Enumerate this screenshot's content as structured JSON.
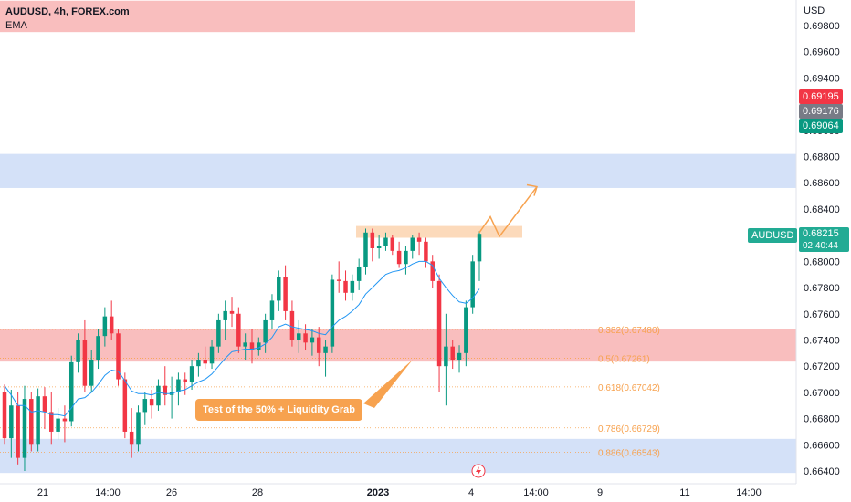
{
  "legend": {
    "symbol": "AUDUSD, 4h, FOREX.com",
    "indicator": "EMA"
  },
  "currency": "USD",
  "price_tags": [
    {
      "value": "0.69195",
      "color": "#f23645"
    },
    {
      "value": "0.69176",
      "color": "#787b86"
    },
    {
      "value": "0.69064",
      "color": "#089981"
    }
  ],
  "current": {
    "symbol": "AUDUSD",
    "price": "0.68215",
    "countdown": "02:40:44",
    "color": "#22ab94"
  },
  "annotation": "Test of the 50% + Liquidity Grab",
  "chart_data": {
    "type": "candlestick",
    "symbol": "AUDUSD",
    "timeframe": "4h",
    "ylim": [
      0.6637,
      0.7
    ],
    "y_ticks": [
      "0.69800",
      "0.69600",
      "0.69400",
      "0.69200",
      "0.69000",
      "0.68800",
      "0.68600",
      "0.68400",
      "0.68200",
      "0.68000",
      "0.67800",
      "0.67600",
      "0.67400",
      "0.67200",
      "0.67000",
      "0.66800",
      "0.66600",
      "0.66400"
    ],
    "x_ticks": [
      "21",
      "14:00",
      "26",
      "28",
      "2023",
      "4",
      "14:00",
      "9",
      "11",
      "14:00"
    ],
    "fib_levels": [
      {
        "label": "0.382(0.67480)",
        "price": 0.6748
      },
      {
        "label": "0.5(0.67261)",
        "price": 0.67261
      },
      {
        "label": "0.618(0.67042)",
        "price": 0.67042
      },
      {
        "label": "0.786(0.66729)",
        "price": 0.66729
      },
      {
        "label": "0.886(0.66543)",
        "price": 0.66543
      }
    ],
    "zones": [
      {
        "type": "supply",
        "top": 0.6999,
        "bottom": 0.6975,
        "color": "#f7a8a8",
        "extent": "partial"
      },
      {
        "type": "demand",
        "top": 0.6882,
        "bottom": 0.6856,
        "color": "#c5d7f5",
        "extent": "full"
      },
      {
        "type": "supply",
        "top": 0.6748,
        "bottom": 0.67235,
        "color": "#f7a8a8",
        "extent": "full"
      },
      {
        "type": "demand",
        "top": 0.66645,
        "bottom": 0.66385,
        "color": "#c5d7f5",
        "extent": "full"
      },
      {
        "type": "resistance",
        "top": 0.6827,
        "bottom": 0.6818,
        "color": "#fcd6b4",
        "extent": "segment"
      }
    ],
    "candles": [
      [
        0.67,
        0.6706,
        0.666,
        0.6665
      ],
      [
        0.6665,
        0.6702,
        0.665,
        0.669
      ],
      [
        0.669,
        0.67,
        0.6645,
        0.665
      ],
      [
        0.665,
        0.6705,
        0.664,
        0.6695
      ],
      [
        0.6695,
        0.67,
        0.6655,
        0.666
      ],
      [
        0.666,
        0.6703,
        0.6655,
        0.6697
      ],
      [
        0.6697,
        0.6704,
        0.6672,
        0.6685
      ],
      [
        0.6685,
        0.67,
        0.666,
        0.667
      ],
      [
        0.667,
        0.6688,
        0.6664,
        0.668
      ],
      [
        0.668,
        0.669,
        0.6662,
        0.6678
      ],
      [
        0.6678,
        0.6728,
        0.6674,
        0.6723
      ],
      [
        0.6723,
        0.6745,
        0.6715,
        0.674
      ],
      [
        0.674,
        0.6755,
        0.67,
        0.6705
      ],
      [
        0.6705,
        0.6732,
        0.67,
        0.6725
      ],
      [
        0.6725,
        0.6748,
        0.6718,
        0.6743
      ],
      [
        0.6743,
        0.6765,
        0.6735,
        0.6758
      ],
      [
        0.6758,
        0.677,
        0.674,
        0.6745
      ],
      [
        0.6745,
        0.6748,
        0.6705,
        0.671
      ],
      [
        0.671,
        0.6715,
        0.6665,
        0.667
      ],
      [
        0.667,
        0.6688,
        0.665,
        0.666
      ],
      [
        0.666,
        0.669,
        0.6655,
        0.6685
      ],
      [
        0.6685,
        0.67,
        0.6675,
        0.6695
      ],
      [
        0.6695,
        0.6702,
        0.668,
        0.669
      ],
      [
        0.669,
        0.671,
        0.6686,
        0.6705
      ],
      [
        0.6705,
        0.672,
        0.669,
        0.6698
      ],
      [
        0.6698,
        0.6712,
        0.668,
        0.67
      ],
      [
        0.67,
        0.6715,
        0.669,
        0.671
      ],
      [
        0.671,
        0.6715,
        0.6698,
        0.6708
      ],
      [
        0.6708,
        0.6725,
        0.6702,
        0.672
      ],
      [
        0.672,
        0.673,
        0.6712,
        0.6725
      ],
      [
        0.6725,
        0.6735,
        0.6718,
        0.6722
      ],
      [
        0.6722,
        0.674,
        0.6718,
        0.6735
      ],
      [
        0.6735,
        0.676,
        0.673,
        0.6755
      ],
      [
        0.6755,
        0.677,
        0.674,
        0.6762
      ],
      [
        0.6762,
        0.6773,
        0.675,
        0.676
      ],
      [
        0.676,
        0.6765,
        0.673,
        0.6735
      ],
      [
        0.6735,
        0.6745,
        0.6725,
        0.6738
      ],
      [
        0.6738,
        0.6748,
        0.6722,
        0.6732
      ],
      [
        0.6732,
        0.6742,
        0.6728,
        0.6738
      ],
      [
        0.6738,
        0.676,
        0.673,
        0.6755
      ],
      [
        0.6755,
        0.6775,
        0.6748,
        0.677
      ],
      [
        0.677,
        0.6793,
        0.6762,
        0.6788
      ],
      [
        0.6788,
        0.6797,
        0.6755,
        0.6762
      ],
      [
        0.6762,
        0.677,
        0.6735,
        0.674
      ],
      [
        0.674,
        0.6755,
        0.673,
        0.6745
      ],
      [
        0.6745,
        0.6752,
        0.6732,
        0.6738
      ],
      [
        0.6738,
        0.6748,
        0.6728,
        0.6742
      ],
      [
        0.6742,
        0.675,
        0.672,
        0.673
      ],
      [
        0.673,
        0.674,
        0.6712,
        0.6735
      ],
      [
        0.6735,
        0.679,
        0.673,
        0.6786
      ],
      [
        0.6786,
        0.68,
        0.6776,
        0.6785
      ],
      [
        0.6785,
        0.6793,
        0.677,
        0.6776
      ],
      [
        0.6776,
        0.679,
        0.677,
        0.6785
      ],
      [
        0.6785,
        0.6802,
        0.6778,
        0.6796
      ],
      [
        0.6796,
        0.6825,
        0.679,
        0.6822
      ],
      [
        0.6822,
        0.6825,
        0.68,
        0.681
      ],
      [
        0.681,
        0.682,
        0.6802,
        0.6812
      ],
      [
        0.6812,
        0.6822,
        0.6808,
        0.6818
      ],
      [
        0.6818,
        0.682,
        0.6805,
        0.6808
      ],
      [
        0.6808,
        0.6815,
        0.6795,
        0.6798
      ],
      [
        0.6798,
        0.6812,
        0.679,
        0.6808
      ],
      [
        0.6808,
        0.682,
        0.6802,
        0.6818
      ],
      [
        0.6818,
        0.6822,
        0.6805,
        0.6815
      ],
      [
        0.6815,
        0.6818,
        0.6795,
        0.68
      ],
      [
        0.68,
        0.6805,
        0.678,
        0.6785
      ],
      [
        0.6785,
        0.679,
        0.67,
        0.672
      ],
      [
        0.672,
        0.676,
        0.669,
        0.6735
      ],
      [
        0.6735,
        0.674,
        0.6718,
        0.6725
      ],
      [
        0.6725,
        0.6736,
        0.6715,
        0.673
      ],
      [
        0.673,
        0.677,
        0.672,
        0.6765
      ],
      [
        0.6765,
        0.6805,
        0.676,
        0.68
      ],
      [
        0.68,
        0.6823,
        0.6785,
        0.6821
      ]
    ],
    "ema": [
      0.6705,
      0.6698,
      0.669,
      0.669,
      0.6685,
      0.6686,
      0.6685,
      0.6683,
      0.6683,
      0.6682,
      0.6688,
      0.6695,
      0.6696,
      0.67,
      0.6706,
      0.6713,
      0.6717,
      0.6716,
      0.6709,
      0.6701,
      0.6699,
      0.6699,
      0.6698,
      0.67,
      0.6699,
      0.6699,
      0.6701,
      0.6702,
      0.6705,
      0.6708,
      0.671,
      0.6714,
      0.672,
      0.6726,
      0.6731,
      0.6732,
      0.6733,
      0.6733,
      0.6734,
      0.6737,
      0.6742,
      0.675,
      0.6752,
      0.675,
      0.6749,
      0.6748,
      0.6747,
      0.6745,
      0.6744,
      0.675,
      0.6755,
      0.6758,
      0.6762,
      0.6767,
      0.6775,
      0.678,
      0.6785,
      0.679,
      0.6792,
      0.6793,
      0.6795,
      0.6798,
      0.68,
      0.68,
      0.6797,
      0.6787,
      0.678,
      0.6774,
      0.6769,
      0.6768,
      0.6772,
      0.6779
    ]
  }
}
